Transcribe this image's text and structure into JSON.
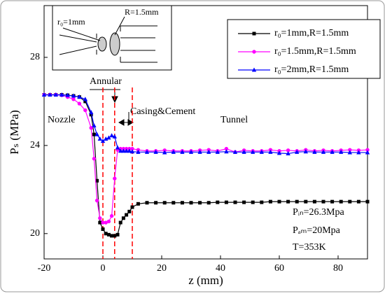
{
  "chart_data": {
    "type": "line",
    "x_label": "z (mm)",
    "y_label": "Pₛ (MPa)",
    "x": [
      -20,
      -18,
      -16,
      -14,
      -12,
      -10,
      -8,
      -6,
      -4,
      -3,
      -2,
      -1,
      0,
      1,
      2,
      3,
      4,
      5,
      6,
      7,
      8,
      9,
      10,
      12,
      15,
      18,
      21,
      24,
      27,
      30,
      33,
      36,
      39,
      42,
      45,
      48,
      51,
      54,
      57,
      60,
      63,
      66,
      69,
      72,
      75,
      78,
      81,
      84,
      87,
      90
    ],
    "series": [
      {
        "name": "r₀=1mm,R=1.5mm",
        "color": "#000000",
        "marker": "square",
        "values": [
          26.3,
          26.3,
          26.3,
          26.3,
          26.28,
          26.25,
          26.2,
          26.0,
          25.4,
          24.5,
          22.4,
          20.5,
          20.2,
          20.0,
          19.95,
          19.9,
          19.9,
          19.95,
          20.5,
          20.7,
          20.85,
          21.0,
          21.2,
          21.35,
          21.4,
          21.4,
          21.4,
          21.4,
          21.4,
          21.4,
          21.4,
          21.4,
          21.42,
          21.42,
          21.42,
          21.42,
          21.42,
          21.42,
          21.45,
          21.45,
          21.45,
          21.45,
          21.45,
          21.45,
          21.45,
          21.45,
          21.45,
          21.45,
          21.45,
          21.45
        ]
      },
      {
        "name": "r₀=1.5mm,R=1.5mm",
        "color": "#ff00ff",
        "marker": "circle",
        "values": [
          26.3,
          26.3,
          26.3,
          26.28,
          26.2,
          26.1,
          25.9,
          25.6,
          24.8,
          23.4,
          21.5,
          20.7,
          20.5,
          20.5,
          20.55,
          20.8,
          22.5,
          23.8,
          23.85,
          23.85,
          23.85,
          23.85,
          23.85,
          23.8,
          23.75,
          23.75,
          23.78,
          23.75,
          23.75,
          23.75,
          23.78,
          23.8,
          23.75,
          23.85,
          23.7,
          23.78,
          23.75,
          23.75,
          23.8,
          23.75,
          23.78,
          23.75,
          23.8,
          23.75,
          23.78,
          23.75,
          23.78,
          23.8,
          23.78,
          23.8
        ]
      },
      {
        "name": "r₀=2mm,R=1.5mm",
        "color": "#0000ff",
        "marker": "triangle",
        "values": [
          26.3,
          26.3,
          26.3,
          26.3,
          26.28,
          26.25,
          26.2,
          26.1,
          25.5,
          24.9,
          24.5,
          24.3,
          24.2,
          24.3,
          24.35,
          24.45,
          24.4,
          23.9,
          23.75,
          23.75,
          23.75,
          23.75,
          23.72,
          23.7,
          23.7,
          23.7,
          23.68,
          23.7,
          23.7,
          23.7,
          23.7,
          23.7,
          23.7,
          23.72,
          23.7,
          23.7,
          23.7,
          23.7,
          23.7,
          23.65,
          23.63,
          23.7,
          23.72,
          23.7,
          23.7,
          23.7,
          23.7,
          23.68,
          23.68,
          23.68
        ]
      }
    ],
    "xlim": [
      -20,
      90
    ],
    "xticks": [
      -20,
      0,
      20,
      40,
      60,
      80
    ],
    "ylim": [
      18.85,
      30.35
    ],
    "yticks": [
      20,
      24,
      28
    ],
    "vlines": [
      0,
      4,
      10
    ],
    "vline_color": "#ff0000",
    "legend": "upper right",
    "annotations": {
      "nozzle": "Nozzle",
      "annular": "Annular",
      "casing": "Casing&Cement",
      "tunnel": "Tunnel",
      "p_in": "Pᵢₙ=26.3Mpa",
      "p_am": "Pₐₘ=20Mpa",
      "temp": "T=353K"
    },
    "inset": {
      "r0": "r₀=1mm",
      "R": "R=1.5mm"
    }
  }
}
